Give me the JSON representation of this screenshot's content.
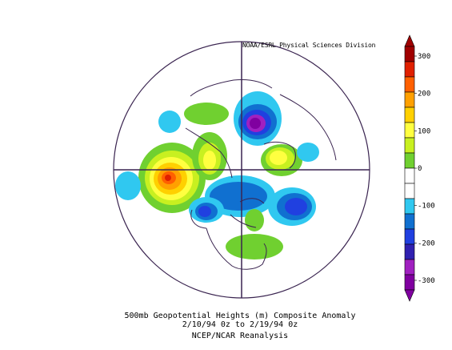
{
  "credit": "NOAA/ESRL Physical Sciences Division",
  "caption": {
    "line1": "500mb Geopotential Heights (m)   Composite Anomaly",
    "line2": "2/10/94 0z  to 2/19/94 0z",
    "line3": "NCEP/NCAR Reanalysis"
  },
  "colorbar": {
    "labels": [
      "300",
      "200",
      "100",
      "0",
      "-100",
      "-200",
      "-300"
    ],
    "colors": [
      "#a00000",
      "#e02000",
      "#ff6000",
      "#ffa000",
      "#ffd000",
      "#ffff40",
      "#c8f020",
      "#70d030",
      "#ffffff",
      "#ffffff",
      "#30c8f0",
      "#1070d0",
      "#2040e0",
      "#3020b0",
      "#a020c0",
      "#8000a0"
    ]
  },
  "map_features": {
    "projection": "north-polar-stereographic",
    "meridian_lines": "on"
  }
}
